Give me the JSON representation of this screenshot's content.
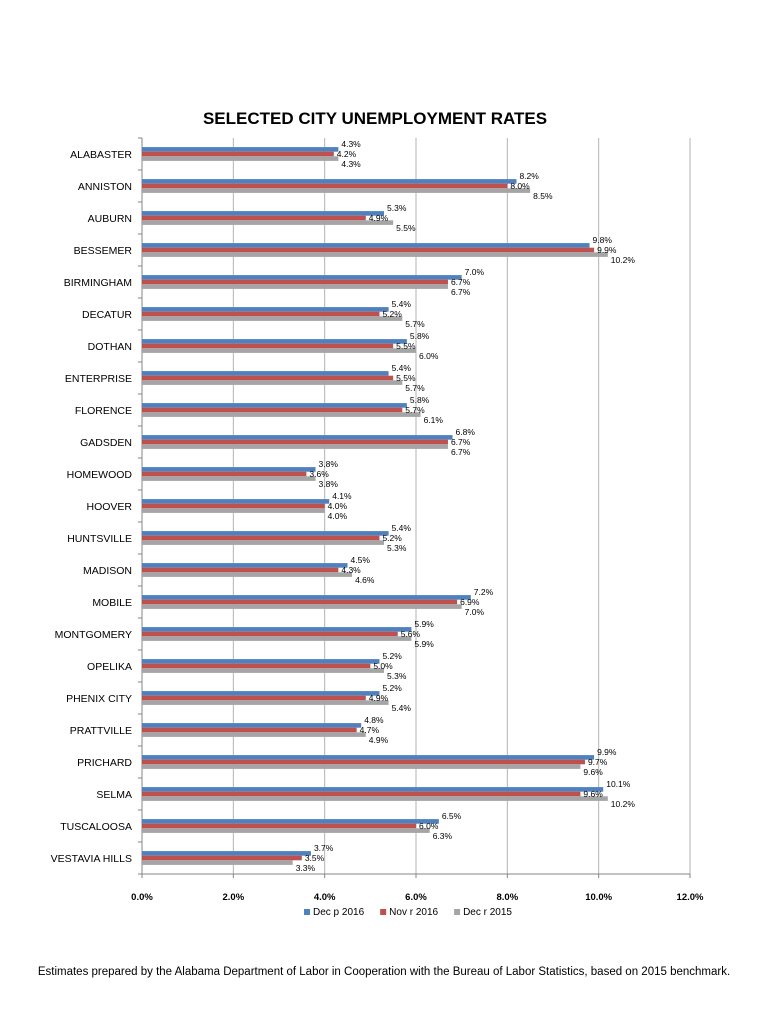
{
  "chart_data": {
    "type": "bar",
    "orientation": "horizontal",
    "title": "SELECTED CITY UNEMPLOYMENT RATES",
    "categories": [
      "ALABASTER",
      "ANNISTON",
      "AUBURN",
      "BESSEMER",
      "BIRMINGHAM",
      "DECATUR",
      "DOTHAN",
      "ENTERPRISE",
      "FLORENCE",
      "GADSDEN",
      "HOMEWOOD",
      "HOOVER",
      "HUNTSVILLE",
      "MADISON",
      "MOBILE",
      "MONTGOMERY",
      "OPELIKA",
      "PHENIX CITY",
      "PRATTVILLE",
      "PRICHARD",
      "SELMA",
      "TUSCALOOSA",
      "VESTAVIA HILLS"
    ],
    "series": [
      {
        "name": "Dec p 2016",
        "color": "#4F81BD",
        "values": [
          4.3,
          8.2,
          5.3,
          9.8,
          7.0,
          5.4,
          5.8,
          5.4,
          5.8,
          6.8,
          3.8,
          4.1,
          5.4,
          4.5,
          7.2,
          5.9,
          5.2,
          5.2,
          4.8,
          9.9,
          10.1,
          6.5,
          3.7
        ],
        "labels": [
          "4.3%",
          "8.2%",
          "5.3%",
          "9.8%",
          "7.0%",
          "5.4%",
          "5.8%",
          "5.4%",
          "5.8%",
          "6.8%",
          "3.8%",
          "4.1%",
          "5.4%",
          "4.5%",
          "7.2%",
          "5.9%",
          "5.2%",
          "5.2%",
          "4.8%",
          "9.9%",
          "10.1%",
          "6.5%",
          "3.7%"
        ]
      },
      {
        "name": "Nov r 2016",
        "color": "#C0504D",
        "values": [
          4.2,
          8.0,
          4.9,
          9.9,
          6.7,
          5.2,
          5.5,
          5.5,
          5.7,
          6.7,
          3.6,
          4.0,
          5.2,
          4.3,
          6.9,
          5.6,
          5.0,
          4.9,
          4.7,
          9.7,
          9.6,
          6.0,
          3.5
        ],
        "labels": [
          "4.2%",
          "8.0%",
          "4.9%",
          "9.9%",
          "6.7%",
          "5.2%",
          "5.5%",
          "5.5%",
          "5.7%",
          "6.7%",
          "3.6%",
          "4.0%",
          "5.2%",
          "4.3%",
          "6.9%",
          "5.6%",
          "5.0%",
          "4.9%",
          "4.7%",
          "9.7%",
          "9.6%",
          "6.0%",
          "3.5%"
        ]
      },
      {
        "name": "Dec r 2015",
        "color": "#A5A5A5",
        "values": [
          4.3,
          8.5,
          5.5,
          10.2,
          6.7,
          5.7,
          6.0,
          5.7,
          6.1,
          6.7,
          3.8,
          4.0,
          5.3,
          4.6,
          7.0,
          5.9,
          5.3,
          5.4,
          4.9,
          9.6,
          10.2,
          6.3,
          3.3
        ],
        "labels": [
          "4.3%",
          "8.5%",
          "5.5%",
          "10.2%",
          "6.7%",
          "5.7%",
          "6.0%",
          "5.7%",
          "6.1%",
          "6.7%",
          "3.8%",
          "4.0%",
          "5.3%",
          "4.6%",
          "7.0%",
          "5.9%",
          "5.3%",
          "5.4%",
          "4.9%",
          "9.6%",
          "10.2%",
          "6.3%",
          "3.3%"
        ]
      }
    ],
    "xlim": [
      0,
      12
    ],
    "xticks": [
      "0.0%",
      "2.0%",
      "4.0%",
      "6.0%",
      "8.0%",
      "10.0%",
      "12.0%"
    ],
    "xlabel": "",
    "ylabel": "",
    "grid": true,
    "legend_position": "bottom"
  },
  "footnote": "Estimates prepared by the Alabama Department of Labor in Cooperation with the Bureau of Labor Statistics, based on 2015 benchmark."
}
